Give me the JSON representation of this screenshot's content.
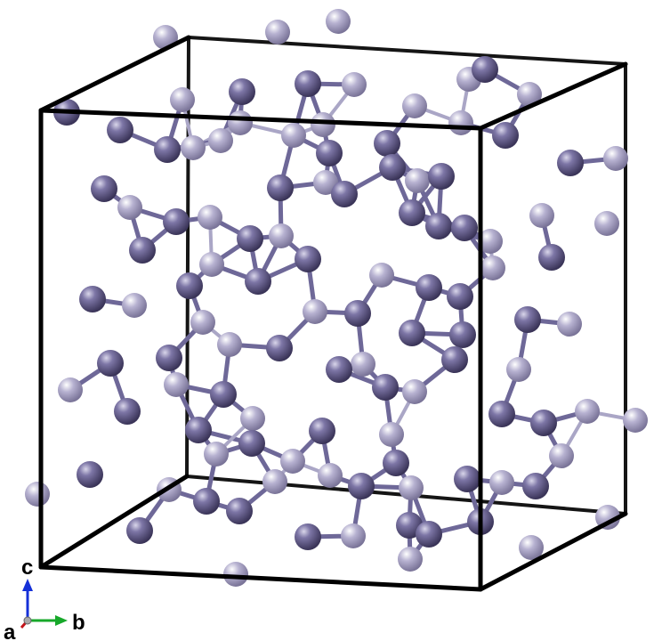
{
  "axes": {
    "c": "c",
    "a": "a",
    "b": "b"
  },
  "colors": {
    "background": "#ffffff",
    "cell_edge": "#151515",
    "atom_light": "#aaa5c8",
    "atom_dark": "#5e5788",
    "bond": "#8f89b4",
    "axis_c": "#1530d8",
    "axis_b": "#17a82a",
    "axis_a": "#c3141a"
  }
}
